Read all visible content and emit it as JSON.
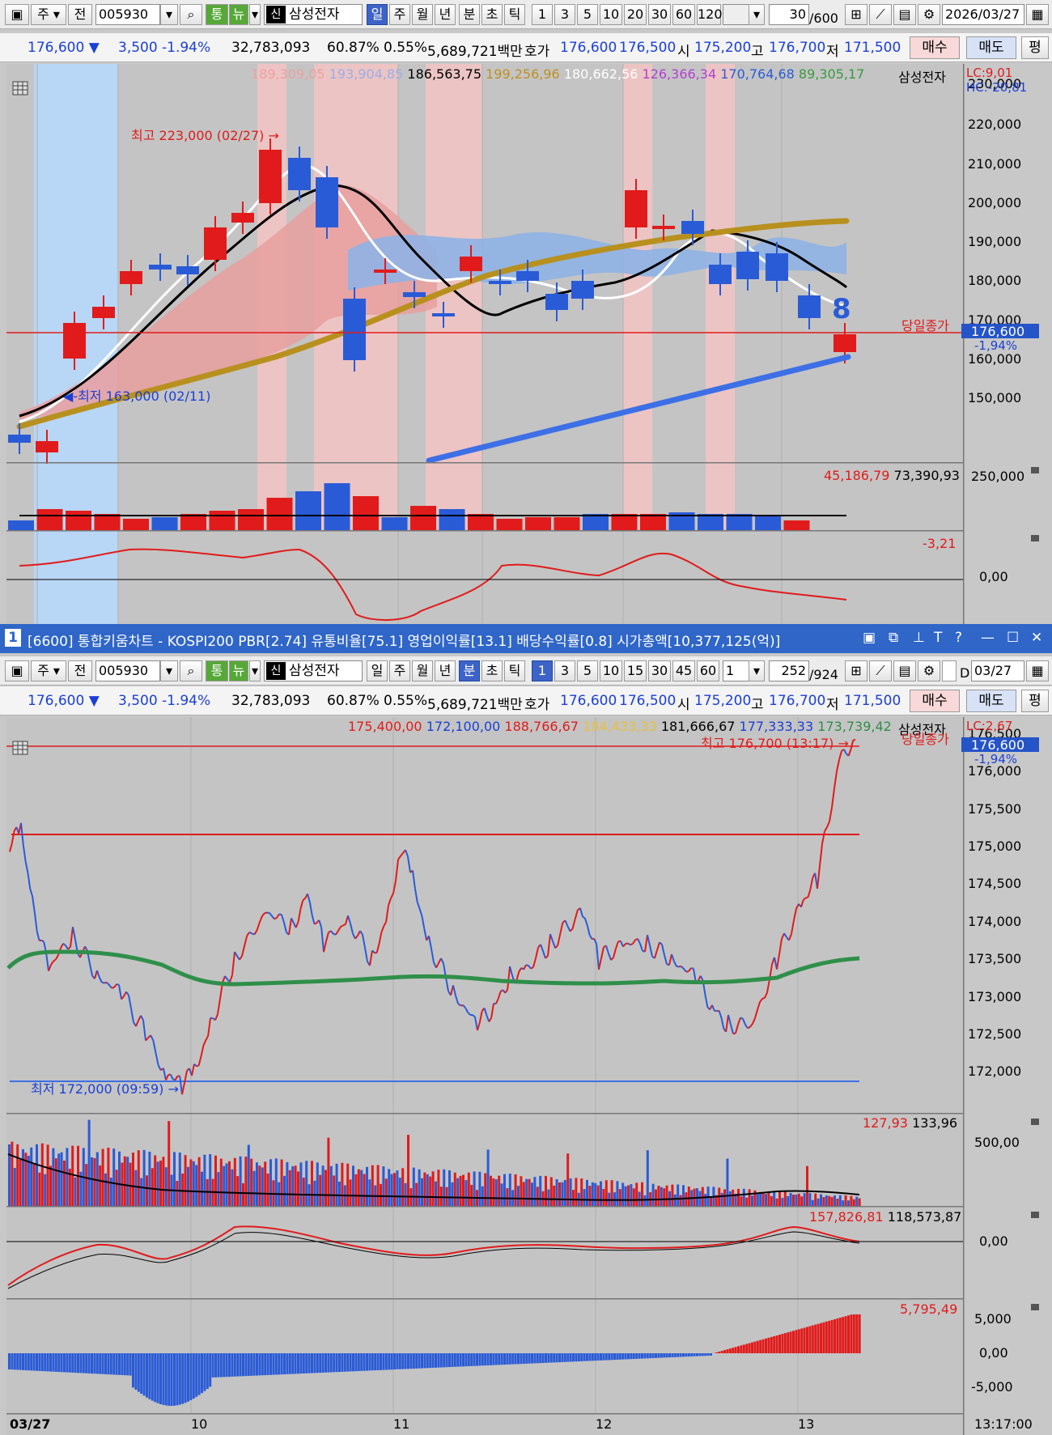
{
  "top": {
    "toolbar": {
      "type_label": "주",
      "prev_label": "전",
      "code": "005930",
      "tong": "통",
      "nyu": "뉴",
      "shin": "신",
      "stock_name": "삼성전자",
      "periods": [
        "일",
        "주",
        "월",
        "년",
        "분",
        "초",
        "틱"
      ],
      "selected_period": "일",
      "intervals": [
        "1",
        "3",
        "5",
        "10",
        "20",
        "30",
        "60",
        "120"
      ],
      "count": "30",
      "total": "/600",
      "date": "2026/03/27"
    },
    "quote": {
      "price": "176,600 ▼",
      "change": "3,500",
      "change_pct": "-1.94%",
      "volume": "32,783,093",
      "vol_ratio": "60.87%",
      "turnover": "0.55%",
      "amount": "5,689,721백만",
      "hoga_label": "호가",
      "ask": "176,600",
      "bid": "176,500",
      "open_label": "시",
      "open": "175,200",
      "high_label": "고",
      "high": "176,700",
      "low_label": "저",
      "low": "171,500",
      "buy": "매수",
      "sell": "매도",
      "flat": "평"
    },
    "legend": {
      "ma1": "189,309,05",
      "ma2": "193,904,85",
      "ma3": "186,563,75",
      "ma4": "199,256,96",
      "ma5": "180,662,56",
      "ma6": "126,366,34",
      "ma7": "170,764,68",
      "ma8": "89,305,17",
      "name": "삼성전자",
      "lc": "LC:9,01",
      "hc": "HC:-20,81"
    },
    "annotations": {
      "high": "최고 223,000 (02/27)",
      "low": "최저 163,000 (02/11)",
      "today_close": "당일종가",
      "current_price": "176,600",
      "current_pct": "-1,94%",
      "badge": "8"
    },
    "y_axis": [
      "230,000",
      "220,000",
      "210,000",
      "200,000",
      "190,000",
      "180,000",
      "170,000",
      "160,000",
      "150,000"
    ],
    "volume_panel": {
      "v1": "45,186,79",
      "v2": "73,390,93",
      "axis": "250,000"
    },
    "osc_panel": {
      "value": "-3,21",
      "axis": "0,00"
    },
    "colors": {
      "up": "#e11b1b",
      "down": "#2a5bd7",
      "ma_white": "#ffffff",
      "ma_black": "#000000",
      "ma_gold": "#b8901e",
      "trend": "#3d6fe6"
    }
  },
  "window": {
    "num": "1",
    "title": "[6600] 통합키움차트 - KOSPI200 PBR[2.74] 유통비율[75.1] 영업이익률[13.1] 배당수익률[0.8] 시가총액[10,377,125(억)]"
  },
  "bottom": {
    "toolbar": {
      "type_label": "주",
      "prev_label": "전",
      "code": "005930",
      "tong": "통",
      "nyu": "뉴",
      "shin": "신",
      "stock_name": "삼성전자",
      "periods": [
        "일",
        "주",
        "월",
        "년",
        "분",
        "초",
        "틱"
      ],
      "selected_period": "분",
      "intervals": [
        "1",
        "3",
        "5",
        "10",
        "15",
        "30",
        "45",
        "60"
      ],
      "selected_interval": "1",
      "dropdown_value": "1",
      "count": "252",
      "total": "/924",
      "date_prefix": "D",
      "date": "03/27"
    },
    "quote": {
      "price": "176,600 ▼",
      "change": "3,500",
      "change_pct": "-1.94%",
      "volume": "32,783,093",
      "vol_ratio": "60.87%",
      "turnover": "0.55%",
      "amount": "5,689,721백만",
      "hoga_label": "호가",
      "ask": "176,600",
      "bid": "176,500",
      "open_label": "시",
      "open": "175,200",
      "high_label": "고",
      "high": "176,700",
      "low_label": "저",
      "low": "171,500",
      "buy": "매수",
      "sell": "매도",
      "flat": "평"
    },
    "legend": {
      "v1": "175,400,00",
      "v2": "172,100,00",
      "v3": "188,766,67",
      "v4": "184,433,33",
      "v5": "181,666,67",
      "v6": "177,333,33",
      "v7": "173,739,42",
      "name": "삼성전자",
      "lc": "LC:2,67"
    },
    "annotations": {
      "high": "최고 176,700 (13:17)",
      "low": "최저 172,000 (09:59)",
      "today_close": "당일종가",
      "current_price": "176,600",
      "current_pct": "-1,94%"
    },
    "y_axis": [
      "176,500",
      "176,000",
      "175,500",
      "175,000",
      "174,500",
      "174,000",
      "173,500",
      "173,000",
      "172,500",
      "172,000"
    ],
    "volume_panel": {
      "v1": "127,93",
      "v2": "133,96",
      "axis": "500,00"
    },
    "osc_panel": {
      "v1": "157,826,81",
      "v2": "118,573,87",
      "axis": "0,00"
    },
    "hist_panel": {
      "value": "5,795,49",
      "axis": [
        "5,000",
        "0,00",
        "-5,000"
      ]
    },
    "x_axis": [
      "03/27",
      "10",
      "11",
      "12",
      "13"
    ],
    "time": "13:17:00"
  }
}
